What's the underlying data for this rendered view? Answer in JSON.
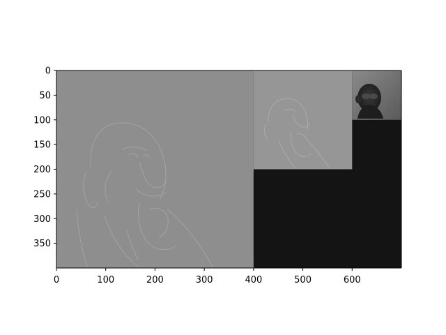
{
  "chart_data": {
    "type": "heatmap",
    "title": "",
    "xlabel": "",
    "ylabel": "",
    "xlim": [
      0,
      700
    ],
    "ylim": [
      400,
      0
    ],
    "x_ticks": [
      0,
      100,
      200,
      300,
      400,
      500,
      600
    ],
    "y_ticks": [
      0,
      50,
      100,
      150,
      200,
      250,
      300,
      350
    ],
    "grid": false,
    "background_value_color": "#141414",
    "panels": [
      {
        "name": "laplacian-level-0",
        "x_range": [
          0,
          400
        ],
        "y_range": [
          0,
          400
        ],
        "base_color": "#8e8e8e",
        "content": "edge-filtered chimpanzee (high-pass residual)"
      },
      {
        "name": "laplacian-level-1",
        "x_range": [
          400,
          600
        ],
        "y_range": [
          0,
          200
        ],
        "base_color": "#969696",
        "content": "edge-filtered chimpanzee (half scale)"
      },
      {
        "name": "lowpass-residual",
        "x_range": [
          600,
          700
        ],
        "y_range": [
          0,
          100
        ],
        "base_color": "#6a6a6a",
        "content": "blurred chimpanzee (quarter scale)"
      }
    ]
  }
}
